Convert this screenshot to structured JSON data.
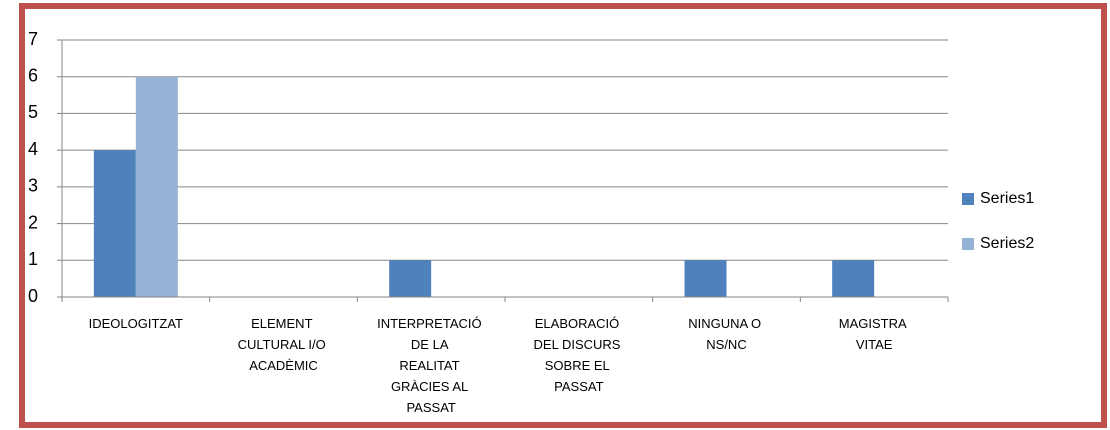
{
  "chart_data": {
    "type": "bar",
    "categories": [
      "IDEOLOGITZAT",
      "ELEMENT CULTURAL I/O ACADÈMIC",
      "INTERPRETACIÓ DE LA REALITAT GRÀCIES AL PASSAT",
      "ELABORACIÓ DEL DISCURS SOBRE EL PASSAT",
      "NINGUNA O NS/NC",
      "MAGISTRA VITAE"
    ],
    "series": [
      {
        "name": "Series1",
        "color": "#4f81bd",
        "values": [
          4,
          0,
          1,
          0,
          1,
          1
        ]
      },
      {
        "name": "Series2",
        "color": "#95b3d7",
        "values": [
          6,
          0,
          0,
          0,
          0,
          0
        ]
      }
    ],
    "ylim": [
      0,
      7
    ],
    "yticks": [
      0,
      1,
      2,
      3,
      4,
      5,
      6,
      7
    ],
    "grid": true,
    "legend": "right"
  }
}
